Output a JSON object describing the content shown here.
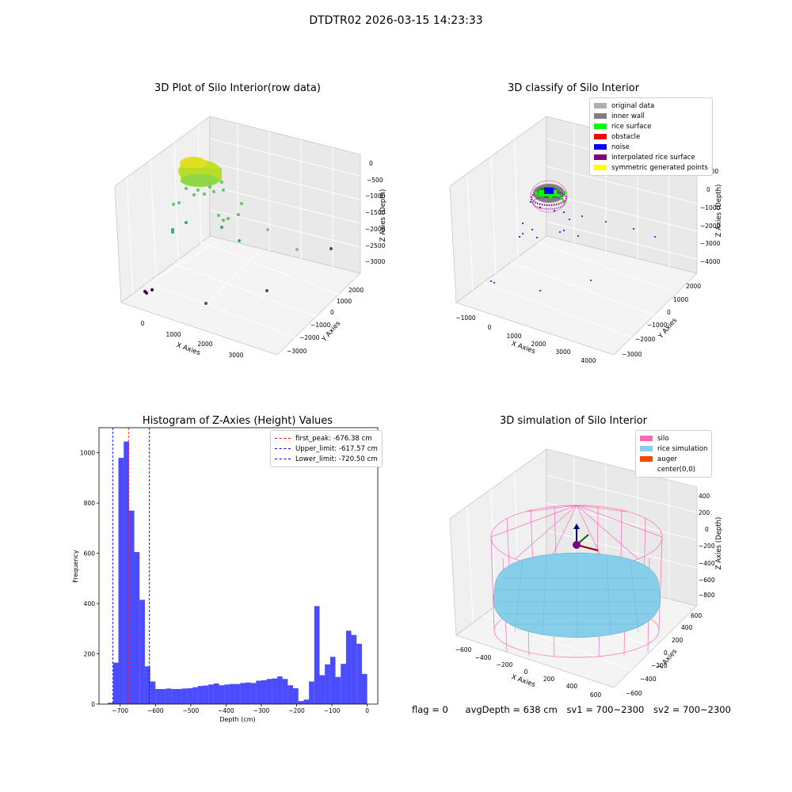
{
  "figure": {
    "suptitle": "DTDTR02 2026-03-15 14:23:33",
    "footer": {
      "flag": "flag = 0",
      "avg_depth": "avgDepth = 638 cm",
      "sv1": "sv1 = 700~2300",
      "sv2": "sv2 = 700~2300"
    }
  },
  "chart_data": [
    {
      "type": "scatter",
      "projection": "3d",
      "title": "3D Plot of Silo Interior(row data)",
      "xlabel": "X Axies",
      "ylabel": "Y Axies",
      "zlabel": "Z Axies (Depth)",
      "x_ticks": [
        "0",
        "1000",
        "2000",
        "3000"
      ],
      "y_ticks": [
        "2000",
        "1000",
        "0",
        "−1000",
        "−2000",
        "−3000"
      ],
      "z_ticks": [
        "0",
        "−500",
        "−1000",
        "−1500",
        "−2000",
        "−2500",
        "−3000"
      ],
      "colormap": "viridis",
      "cluster_color": "#c8e020",
      "point_colors": [
        "#440154",
        "#3b528b",
        "#21918c",
        "#5ec962",
        "#aadc32",
        "#9aa6cc"
      ]
    },
    {
      "type": "scatter",
      "projection": "3d",
      "title": "3D classify of Silo Interior",
      "xlabel": "X Axies",
      "ylabel": "Y Axies",
      "zlabel": "Z Axies (Depth)",
      "x_ticks": [
        "−1000",
        "0",
        "1000",
        "2000",
        "3000",
        "4000"
      ],
      "y_ticks": [
        "2000",
        "1000",
        "0",
        "−1000",
        "−2000",
        "−3000"
      ],
      "z_ticks": [
        "1000",
        "0",
        "−1000",
        "−2000",
        "−3000",
        "−4000"
      ],
      "legend_position": "top-right",
      "legend": [
        {
          "label": "original data",
          "color": "#b0b0b0"
        },
        {
          "label": "inner wall",
          "color": "#808080"
        },
        {
          "label": "rice surface",
          "color": "#00ff00"
        },
        {
          "label": "obstacle",
          "color": "#ff0000"
        },
        {
          "label": "noise",
          "color": "#0000ff"
        },
        {
          "label": "interpolated rice surface",
          "color": "#800080"
        },
        {
          "label": "symmetric generated points",
          "color": "#ffff00"
        }
      ]
    },
    {
      "type": "bar",
      "title": "Histogram of Z-Axies (Height) Values",
      "xlabel": "Depth (cm)",
      "ylabel": "Frequency",
      "xlim": [
        -760,
        30
      ],
      "ylim": [
        0,
        1100
      ],
      "x_ticks": [
        -700,
        -600,
        -500,
        -400,
        -300,
        -200,
        -100,
        0
      ],
      "y_ticks": [
        0,
        200,
        400,
        600,
        800,
        1000
      ],
      "bar_color": "#0000ff",
      "bin_width": 15,
      "bin_start": -735,
      "values": [
        5,
        165,
        980,
        1045,
        770,
        605,
        415,
        150,
        90,
        60,
        60,
        62,
        60,
        60,
        62,
        63,
        67,
        72,
        74,
        78,
        82,
        75,
        78,
        80,
        80,
        84,
        86,
        84,
        93,
        95,
        100,
        102,
        110,
        100,
        75,
        63,
        12,
        18,
        90,
        390,
        115,
        158,
        188,
        108,
        160,
        292,
        275,
        240,
        120
      ],
      "vlines": [
        {
          "label": "first_peak: -676.38 cm",
          "x": -676.38,
          "color": "#ff0000"
        },
        {
          "label": "Upper_limit: -617.57 cm",
          "x": -617.57,
          "color": "#0000ff"
        },
        {
          "label": "Lower_limit: -720.50 cm",
          "x": -720.5,
          "color": "#0000ff"
        }
      ],
      "legend_position": "top-right"
    },
    {
      "type": "surface",
      "projection": "3d",
      "title": "3D simulation of Silo Interior",
      "xlabel": "X Axies",
      "ylabel": "Y Axies",
      "zlabel": "Z Axies (Depth)",
      "x_ticks": [
        "−600",
        "−400",
        "−200",
        "0",
        "200",
        "400",
        "600"
      ],
      "y_ticks": [
        "600",
        "400",
        "200",
        "0",
        "−200",
        "−400",
        "−600"
      ],
      "z_ticks": [
        "400",
        "200",
        "0",
        "−200",
        "−400",
        "−600",
        "−800"
      ],
      "legend_position": "top-right",
      "legend": [
        {
          "label": "silo",
          "color": "#ff69b4"
        },
        {
          "label": "rice simulation",
          "color": "#87ceeb"
        },
        {
          "label": "auger",
          "color": "#ff4500"
        },
        {
          "label": "center(0,0)",
          "color": ""
        }
      ]
    }
  ]
}
